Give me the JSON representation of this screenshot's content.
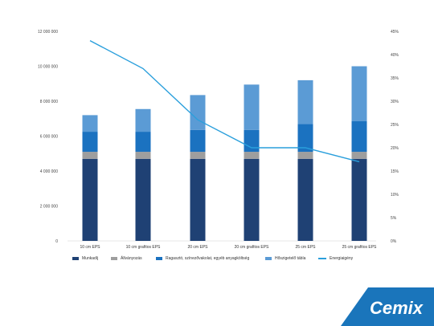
{
  "chart_data": {
    "type": "bar",
    "stacked": true,
    "categories": [
      "10 cm EPS",
      "10 cm grafitos EPS",
      "20 cm EPS",
      "20 cm grafitos EPS",
      "25 cm EPS",
      "25 cm grafitos EPS"
    ],
    "series": [
      {
        "name": "Munkadíj",
        "color": "#1f4174",
        "values": [
          4700000,
          4700000,
          4700000,
          4700000,
          4700000,
          4700000
        ]
      },
      {
        "name": "Állványozás",
        "color": "#9e9e9e",
        "values": [
          400000,
          400000,
          400000,
          400000,
          400000,
          400000
        ]
      },
      {
        "name": "Ragasztó, színezővakolat, egyéb anyagköltség",
        "color": "#1b72c0",
        "values": [
          1150000,
          1150000,
          1250000,
          1250000,
          1600000,
          1750000
        ]
      },
      {
        "name": "Hőszigetelő tábla",
        "color": "#5b9bd5",
        "values": [
          950000,
          1300000,
          2000000,
          2600000,
          2500000,
          3150000
        ]
      }
    ],
    "line_series": {
      "name": "Energiaigény",
      "color": "#2a9fdc",
      "axis": "right",
      "values": [
        43,
        37,
        26,
        20,
        20,
        17
      ]
    },
    "y_left": {
      "ylim": [
        0,
        12000000
      ],
      "ticks": [
        "0",
        "2 000 000",
        "4 000 000",
        "6 000 000",
        "8 000 000",
        "10 000 000",
        "12 000 000"
      ]
    },
    "y_right": {
      "ylim": [
        0,
        45
      ],
      "ticks": [
        "0%",
        "5%",
        "10%",
        "15%",
        "20%",
        "25%",
        "30%",
        "35%",
        "40%",
        "45%"
      ]
    },
    "grid": false,
    "legend_position": "bottom"
  },
  "logo": {
    "text": "Cemix",
    "color": "#1a75bb"
  }
}
